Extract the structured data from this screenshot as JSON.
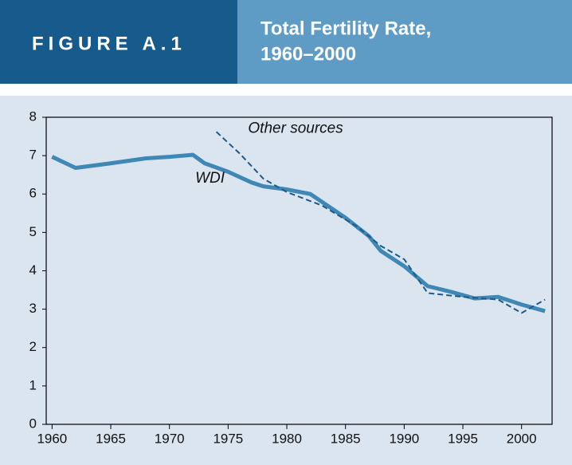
{
  "chart_data": {
    "type": "line",
    "figure_label": "FIGURE A.1",
    "title_lines": [
      "Total Fertility Rate,",
      "1960–2000"
    ],
    "xlim": [
      1959.5,
      2002.6
    ],
    "xticks": [
      1960,
      1965,
      1970,
      1975,
      1980,
      1985,
      1990,
      1995,
      2000
    ],
    "ylim": [
      0,
      8
    ],
    "yticks": [
      0,
      1,
      2,
      3,
      4,
      5,
      6,
      7,
      8
    ],
    "series": [
      {
        "name": "WDI",
        "color": "#3f87b5",
        "dashed": false,
        "x": [
          1960,
          1962,
          1965,
          1968,
          1970,
          1972,
          1973,
          1975,
          1977,
          1978,
          1980,
          1982,
          1985,
          1987,
          1988,
          1990,
          1992,
          1994,
          1996,
          1998,
          2000,
          2002
        ],
        "values": [
          6.97,
          6.68,
          6.8,
          6.93,
          6.97,
          7.02,
          6.8,
          6.58,
          6.3,
          6.2,
          6.12,
          6.0,
          5.38,
          4.9,
          4.52,
          4.12,
          3.6,
          3.45,
          3.28,
          3.32,
          3.12,
          2.95
        ]
      },
      {
        "name": "Other sources",
        "color": "#1d5a88",
        "dashed": true,
        "x": [
          1974,
          1976,
          1978,
          1980,
          1983,
          1986,
          1988,
          1990,
          1992,
          1995,
          1998,
          2000,
          2002
        ],
        "values": [
          7.62,
          7.05,
          6.4,
          6.05,
          5.7,
          5.15,
          4.65,
          4.3,
          3.42,
          3.32,
          3.25,
          2.9,
          3.25
        ]
      }
    ]
  }
}
